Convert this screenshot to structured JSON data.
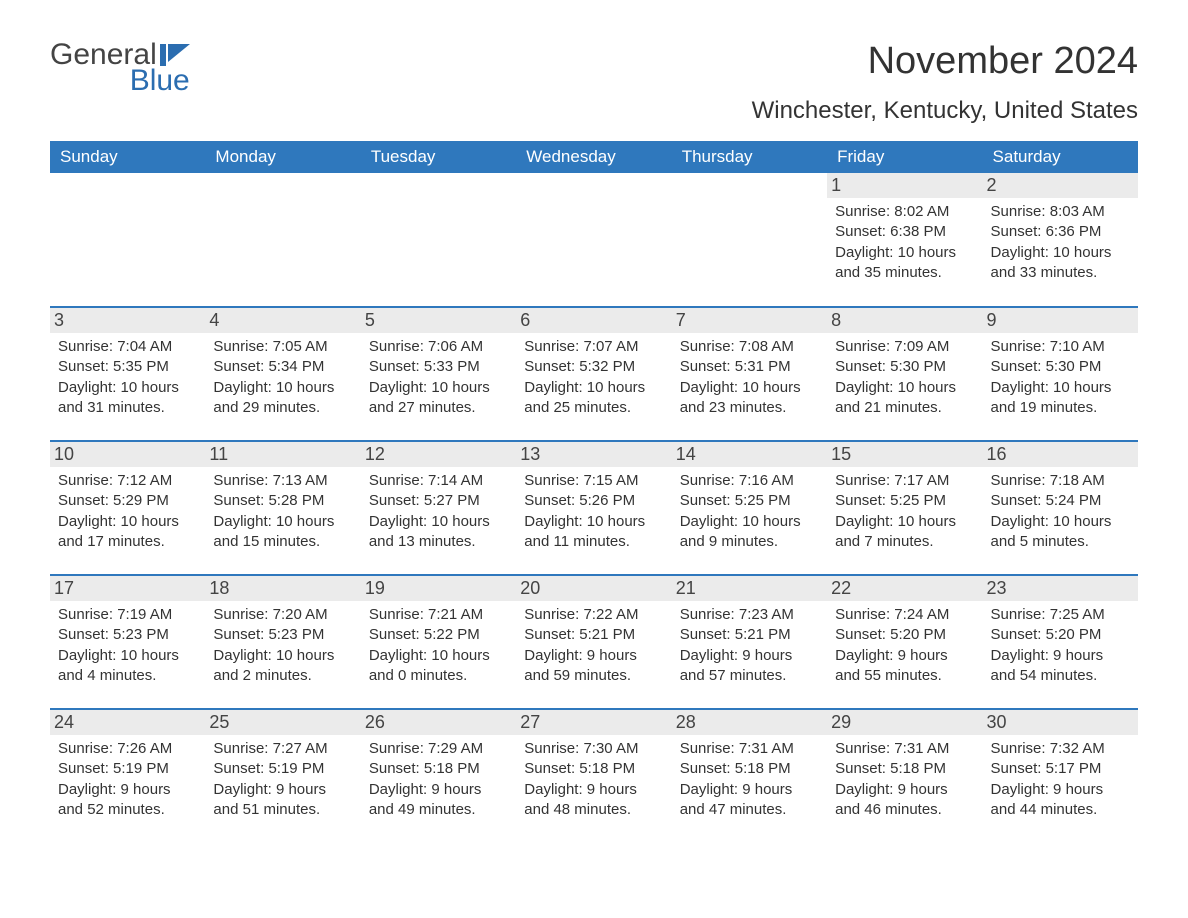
{
  "logo": {
    "general": "General",
    "blue": "Blue"
  },
  "title": "November 2024",
  "location": "Winchester, Kentucky, United States",
  "colors": {
    "header_bg": "#2f78bd",
    "header_fg": "#ffffff",
    "row_border": "#2f78bd",
    "daynum_bg": "#ebebeb",
    "text": "#333333",
    "logo_blue": "#2b6db0",
    "logo_dark": "#444444",
    "page_bg": "#ffffff"
  },
  "day_headers": [
    "Sunday",
    "Monday",
    "Tuesday",
    "Wednesday",
    "Thursday",
    "Friday",
    "Saturday"
  ],
  "weeks": [
    [
      {
        "num": "",
        "sunrise": "",
        "sunset": "",
        "daylight": ""
      },
      {
        "num": "",
        "sunrise": "",
        "sunset": "",
        "daylight": ""
      },
      {
        "num": "",
        "sunrise": "",
        "sunset": "",
        "daylight": ""
      },
      {
        "num": "",
        "sunrise": "",
        "sunset": "",
        "daylight": ""
      },
      {
        "num": "",
        "sunrise": "",
        "sunset": "",
        "daylight": ""
      },
      {
        "num": "1",
        "sunrise": "Sunrise: 8:02 AM",
        "sunset": "Sunset: 6:38 PM",
        "daylight": "Daylight: 10 hours and 35 minutes."
      },
      {
        "num": "2",
        "sunrise": "Sunrise: 8:03 AM",
        "sunset": "Sunset: 6:36 PM",
        "daylight": "Daylight: 10 hours and 33 minutes."
      }
    ],
    [
      {
        "num": "3",
        "sunrise": "Sunrise: 7:04 AM",
        "sunset": "Sunset: 5:35 PM",
        "daylight": "Daylight: 10 hours and 31 minutes."
      },
      {
        "num": "4",
        "sunrise": "Sunrise: 7:05 AM",
        "sunset": "Sunset: 5:34 PM",
        "daylight": "Daylight: 10 hours and 29 minutes."
      },
      {
        "num": "5",
        "sunrise": "Sunrise: 7:06 AM",
        "sunset": "Sunset: 5:33 PM",
        "daylight": "Daylight: 10 hours and 27 minutes."
      },
      {
        "num": "6",
        "sunrise": "Sunrise: 7:07 AM",
        "sunset": "Sunset: 5:32 PM",
        "daylight": "Daylight: 10 hours and 25 minutes."
      },
      {
        "num": "7",
        "sunrise": "Sunrise: 7:08 AM",
        "sunset": "Sunset: 5:31 PM",
        "daylight": "Daylight: 10 hours and 23 minutes."
      },
      {
        "num": "8",
        "sunrise": "Sunrise: 7:09 AM",
        "sunset": "Sunset: 5:30 PM",
        "daylight": "Daylight: 10 hours and 21 minutes."
      },
      {
        "num": "9",
        "sunrise": "Sunrise: 7:10 AM",
        "sunset": "Sunset: 5:30 PM",
        "daylight": "Daylight: 10 hours and 19 minutes."
      }
    ],
    [
      {
        "num": "10",
        "sunrise": "Sunrise: 7:12 AM",
        "sunset": "Sunset: 5:29 PM",
        "daylight": "Daylight: 10 hours and 17 minutes."
      },
      {
        "num": "11",
        "sunrise": "Sunrise: 7:13 AM",
        "sunset": "Sunset: 5:28 PM",
        "daylight": "Daylight: 10 hours and 15 minutes."
      },
      {
        "num": "12",
        "sunrise": "Sunrise: 7:14 AM",
        "sunset": "Sunset: 5:27 PM",
        "daylight": "Daylight: 10 hours and 13 minutes."
      },
      {
        "num": "13",
        "sunrise": "Sunrise: 7:15 AM",
        "sunset": "Sunset: 5:26 PM",
        "daylight": "Daylight: 10 hours and 11 minutes."
      },
      {
        "num": "14",
        "sunrise": "Sunrise: 7:16 AM",
        "sunset": "Sunset: 5:25 PM",
        "daylight": "Daylight: 10 hours and 9 minutes."
      },
      {
        "num": "15",
        "sunrise": "Sunrise: 7:17 AM",
        "sunset": "Sunset: 5:25 PM",
        "daylight": "Daylight: 10 hours and 7 minutes."
      },
      {
        "num": "16",
        "sunrise": "Sunrise: 7:18 AM",
        "sunset": "Sunset: 5:24 PM",
        "daylight": "Daylight: 10 hours and 5 minutes."
      }
    ],
    [
      {
        "num": "17",
        "sunrise": "Sunrise: 7:19 AM",
        "sunset": "Sunset: 5:23 PM",
        "daylight": "Daylight: 10 hours and 4 minutes."
      },
      {
        "num": "18",
        "sunrise": "Sunrise: 7:20 AM",
        "sunset": "Sunset: 5:23 PM",
        "daylight": "Daylight: 10 hours and 2 minutes."
      },
      {
        "num": "19",
        "sunrise": "Sunrise: 7:21 AM",
        "sunset": "Sunset: 5:22 PM",
        "daylight": "Daylight: 10 hours and 0 minutes."
      },
      {
        "num": "20",
        "sunrise": "Sunrise: 7:22 AM",
        "sunset": "Sunset: 5:21 PM",
        "daylight": "Daylight: 9 hours and 59 minutes."
      },
      {
        "num": "21",
        "sunrise": "Sunrise: 7:23 AM",
        "sunset": "Sunset: 5:21 PM",
        "daylight": "Daylight: 9 hours and 57 minutes."
      },
      {
        "num": "22",
        "sunrise": "Sunrise: 7:24 AM",
        "sunset": "Sunset: 5:20 PM",
        "daylight": "Daylight: 9 hours and 55 minutes."
      },
      {
        "num": "23",
        "sunrise": "Sunrise: 7:25 AM",
        "sunset": "Sunset: 5:20 PM",
        "daylight": "Daylight: 9 hours and 54 minutes."
      }
    ],
    [
      {
        "num": "24",
        "sunrise": "Sunrise: 7:26 AM",
        "sunset": "Sunset: 5:19 PM",
        "daylight": "Daylight: 9 hours and 52 minutes."
      },
      {
        "num": "25",
        "sunrise": "Sunrise: 7:27 AM",
        "sunset": "Sunset: 5:19 PM",
        "daylight": "Daylight: 9 hours and 51 minutes."
      },
      {
        "num": "26",
        "sunrise": "Sunrise: 7:29 AM",
        "sunset": "Sunset: 5:18 PM",
        "daylight": "Daylight: 9 hours and 49 minutes."
      },
      {
        "num": "27",
        "sunrise": "Sunrise: 7:30 AM",
        "sunset": "Sunset: 5:18 PM",
        "daylight": "Daylight: 9 hours and 48 minutes."
      },
      {
        "num": "28",
        "sunrise": "Sunrise: 7:31 AM",
        "sunset": "Sunset: 5:18 PM",
        "daylight": "Daylight: 9 hours and 47 minutes."
      },
      {
        "num": "29",
        "sunrise": "Sunrise: 7:31 AM",
        "sunset": "Sunset: 5:18 PM",
        "daylight": "Daylight: 9 hours and 46 minutes."
      },
      {
        "num": "30",
        "sunrise": "Sunrise: 7:32 AM",
        "sunset": "Sunset: 5:17 PM",
        "daylight": "Daylight: 9 hours and 44 minutes."
      }
    ]
  ]
}
